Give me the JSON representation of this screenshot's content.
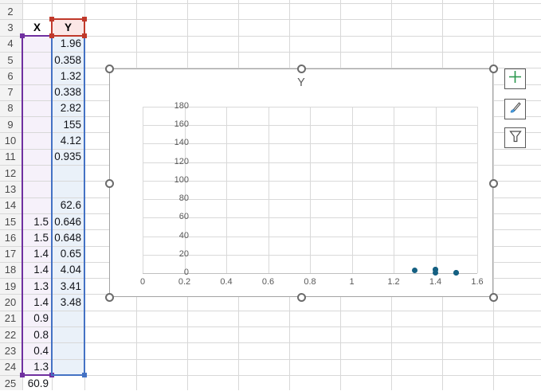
{
  "spreadsheet": {
    "row_numbers": [
      "2",
      "3",
      "4",
      "5",
      "6",
      "7",
      "8",
      "9",
      "10",
      "11",
      "12",
      "13",
      "14",
      "15",
      "16",
      "17",
      "18",
      "19",
      "20",
      "21",
      "22",
      "23",
      "24",
      "25"
    ],
    "col_x_header": "X",
    "col_y_header": "Y",
    "rows": [
      {
        "n": 4,
        "x": "",
        "y": "1.96"
      },
      {
        "n": 5,
        "x": "",
        "y": "0.358"
      },
      {
        "n": 6,
        "x": "",
        "y": "1.32"
      },
      {
        "n": 7,
        "x": "",
        "y": "0.338"
      },
      {
        "n": 8,
        "x": "",
        "y": "2.82"
      },
      {
        "n": 9,
        "x": "",
        "y": "155"
      },
      {
        "n": 10,
        "x": "",
        "y": "4.12"
      },
      {
        "n": 11,
        "x": "",
        "y": "0.935"
      },
      {
        "n": 12,
        "x": "",
        "y": ""
      },
      {
        "n": 13,
        "x": "",
        "y": ""
      },
      {
        "n": 14,
        "x": "",
        "y": "62.6"
      },
      {
        "n": 15,
        "x": "1.5",
        "y": "0.646"
      },
      {
        "n": 16,
        "x": "1.5",
        "y": "0.648"
      },
      {
        "n": 17,
        "x": "1.4",
        "y": "0.65"
      },
      {
        "n": 18,
        "x": "1.4",
        "y": "4.04"
      },
      {
        "n": 19,
        "x": "1.3",
        "y": "3.41"
      },
      {
        "n": 20,
        "x": "1.4",
        "y": "3.48"
      },
      {
        "n": 21,
        "x": "0.9",
        "y": ""
      },
      {
        "n": 22,
        "x": "0.8",
        "y": ""
      },
      {
        "n": 23,
        "x": "0.4",
        "y": ""
      },
      {
        "n": 24,
        "x": "1.3",
        "y": ""
      },
      {
        "n": 25,
        "x": "60.9",
        "y": ""
      }
    ],
    "selection": {
      "x_range_color": "#7030a0",
      "x_range_fill": "#f6f1fa",
      "y_range_color": "#4472c4",
      "y_range_fill": "#eaf1f9",
      "series_name_color": "#c0392b",
      "series_name_fill": "#fbe7e6"
    }
  },
  "chart_data": {
    "type": "scatter",
    "title": "Y",
    "series": [
      {
        "name": "Y",
        "points": [
          [
            1.3,
            3.41
          ],
          [
            1.4,
            0.65
          ],
          [
            1.4,
            4.04
          ],
          [
            1.4,
            3.48
          ],
          [
            1.5,
            0.646
          ],
          [
            1.5,
            0.648
          ]
        ]
      }
    ],
    "xlim": [
      0,
      1.6
    ],
    "ylim": [
      0,
      180
    ],
    "x_ticks": [
      "0",
      "0.2",
      "0.4",
      "0.6",
      "0.8",
      "1",
      "1.2",
      "1.4",
      "1.6"
    ],
    "y_ticks": [
      "0",
      "20",
      "40",
      "60",
      "80",
      "100",
      "120",
      "140",
      "160",
      "180"
    ],
    "grid": true,
    "legend": "none",
    "marker_color": "#156082"
  },
  "chart_buttons": [
    {
      "icon": "plus-icon",
      "name": "chart-elements-button",
      "accent": "#28964b"
    },
    {
      "icon": "paintbrush-icon",
      "name": "chart-styles-button",
      "accent": "#4aa3e8"
    },
    {
      "icon": "funnel-icon",
      "name": "chart-filters-button",
      "accent": "#4a4a4a"
    }
  ]
}
